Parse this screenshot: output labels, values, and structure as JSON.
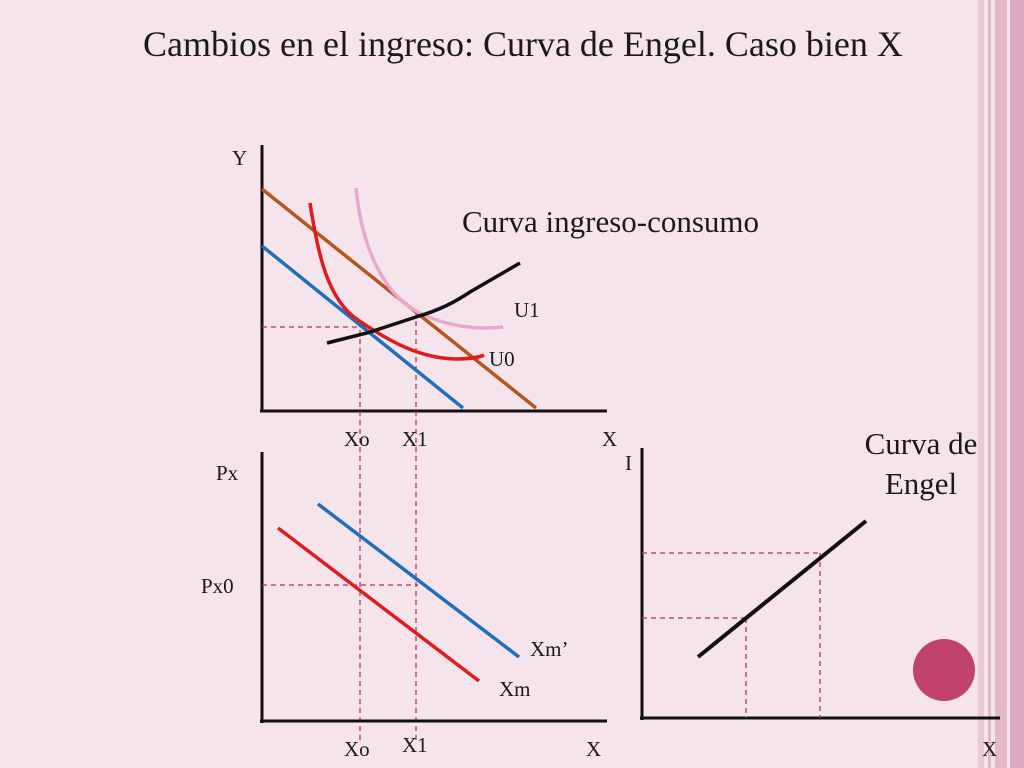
{
  "slide": {
    "title": "Cambios en el ingreso: Curva de Engel. Caso bien X"
  },
  "top_graph": {
    "y_axis_label": "Y",
    "x_axis_label": "X",
    "curve_label": "Curva ingreso-consumo",
    "indifference_labels": [
      "U1",
      "U0"
    ],
    "x_ticks": [
      "Xo",
      "X1"
    ]
  },
  "bottom_left_graph": {
    "y_axis_label": "Px",
    "x_axis_label": "X",
    "price_tick": "Px0",
    "demand_labels": [
      "Xm’",
      "Xm"
    ],
    "x_ticks": [
      "Xo",
      "X1"
    ]
  },
  "bottom_right_graph": {
    "y_axis_label": "I",
    "x_axis_label": "X",
    "engel_label_line1": "Curva de",
    "engel_label_line2": "Engel"
  },
  "colors": {
    "background": "#f5e4ec",
    "budget_initial": "#1f6fbf",
    "budget_new": "#b5561f",
    "indifference_U0": "#e01b1b",
    "indifference_U1": "#e6a8cc",
    "income_consumption_curve": "#111111",
    "demand_Xm": "#e01b1b",
    "demand_Xm_prime": "#1f6fbf",
    "engel_curve": "#111111",
    "guide_lines": "#b4335e",
    "decor_circle": "#c2426e",
    "decor_stripes": "#e3b8c8"
  }
}
